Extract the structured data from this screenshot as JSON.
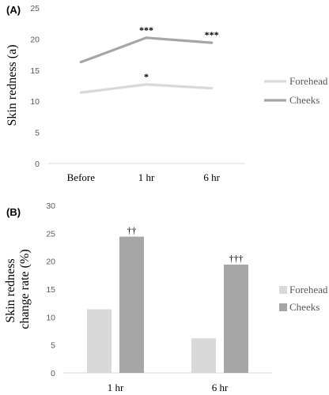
{
  "chart_data": [
    {
      "panel_label": "(A)",
      "type": "line",
      "ylabel": "Skin redness (a)",
      "ylim": [
        0,
        25
      ],
      "yticks": [
        0,
        5,
        10,
        15,
        20,
        25
      ],
      "categories": [
        "Before",
        "1 hr",
        "6 hr"
      ],
      "series": [
        {
          "name": "Forehead",
          "color": "#d9d9d9",
          "values": [
            11.4,
            12.7,
            12.1
          ],
          "annotations": [
            "",
            "*",
            ""
          ]
        },
        {
          "name": "Cheeks",
          "color": "#a6a6a6",
          "values": [
            16.3,
            20.2,
            19.4
          ],
          "annotations": [
            "",
            "***",
            "***"
          ]
        }
      ],
      "legend": "right",
      "grid": false
    },
    {
      "panel_label": "(B)",
      "type": "bar",
      "ylabel": "Skin redness change rate (%)",
      "ylabel_lines": [
        "Skin redness",
        "change rate (%)"
      ],
      "ylim": [
        0,
        30
      ],
      "yticks": [
        0,
        5,
        10,
        15,
        20,
        25,
        30
      ],
      "categories": [
        "1 hr",
        "6 hr"
      ],
      "series": [
        {
          "name": "Forehead",
          "color": "#d9d9d9",
          "values": [
            11.4,
            6.2
          ],
          "annotations": [
            "",
            ""
          ]
        },
        {
          "name": "Cheeks",
          "color": "#a6a6a6",
          "values": [
            24.4,
            19.4
          ],
          "annotations": [
            "††",
            "†††"
          ]
        }
      ],
      "legend": "right",
      "grid": false
    }
  ]
}
